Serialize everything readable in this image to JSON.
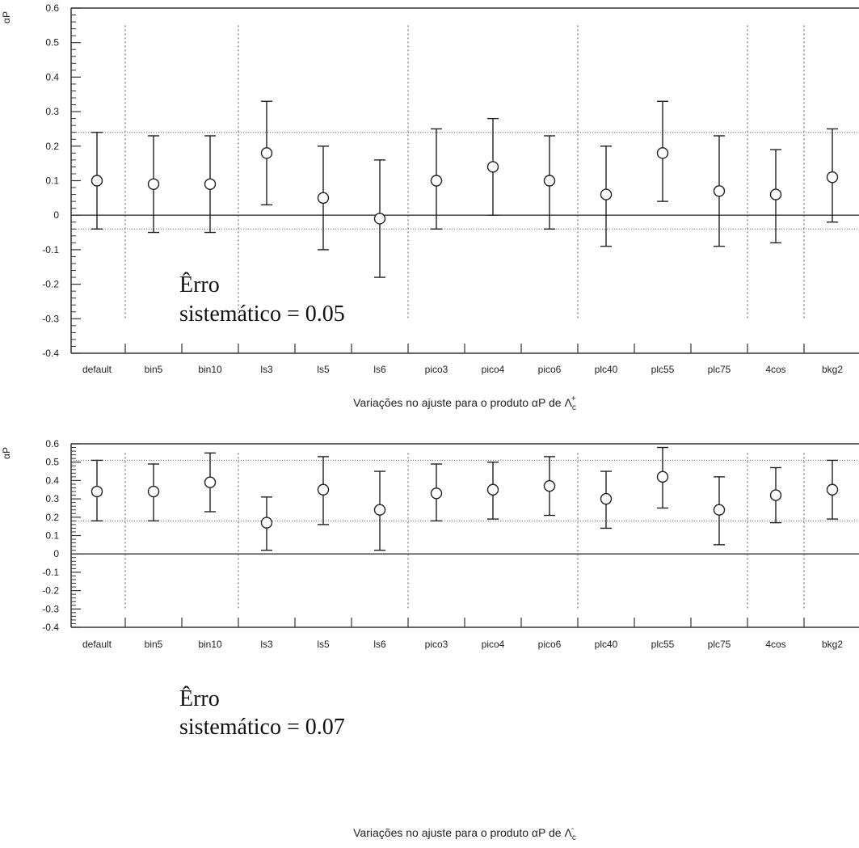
{
  "chart_data": [
    {
      "type": "scatter",
      "ylabel": "αP",
      "xlabel_main": "Variações no ajuste para o produto αP de ",
      "xlabel_symbol": "Λ",
      "xlabel_sub": "c",
      "xlabel_sup": "+",
      "ylim": [
        -0.4,
        0.6
      ],
      "yticks": [
        "0.6",
        "0.5",
        "0.4",
        "0.3",
        "0.2",
        "0.1",
        "0",
        "-0.1",
        "-0.2",
        "-0.3",
        "-0.4"
      ],
      "categories": [
        "default",
        "bin5",
        "bin10",
        "ls3",
        "ls5",
        "ls6",
        "pico3",
        "pico4",
        "pico6",
        "plc40",
        "plc55",
        "plc75",
        "4cos",
        "bkg2"
      ],
      "values": [
        0.1,
        0.09,
        0.09,
        0.18,
        0.05,
        -0.01,
        0.1,
        0.14,
        0.1,
        0.06,
        0.18,
        0.07,
        0.06,
        0.11
      ],
      "err_low": [
        -0.04,
        -0.05,
        -0.05,
        0.03,
        -0.1,
        -0.18,
        -0.04,
        0.0,
        -0.04,
        -0.09,
        0.04,
        -0.09,
        -0.08,
        -0.02
      ],
      "err_high": [
        0.24,
        0.23,
        0.23,
        0.33,
        0.2,
        0.16,
        0.25,
        0.28,
        0.23,
        0.2,
        0.33,
        0.23,
        0.19,
        0.25
      ],
      "reference_lines": [
        0.24,
        0.0,
        -0.04
      ],
      "dashed_dividers_after": [
        "default",
        "bin10",
        "ls6",
        "pico6",
        "plc75",
        "4cos"
      ],
      "annotation_line1": "Êrro",
      "annotation_line2": "sistemático = 0.05"
    },
    {
      "type": "scatter",
      "ylabel": "αP",
      "xlabel_main": "Variações no ajuste para o produto αP de ",
      "xlabel_symbol": "Λ",
      "xlabel_sub": "c",
      "xlabel_sup": "-",
      "ylim": [
        -0.4,
        0.6
      ],
      "yticks": [
        "0.6",
        "0.5",
        "0.4",
        "0.3",
        "0.2",
        "0.1",
        "0",
        "-0.1",
        "-0.2",
        "-0.3",
        "-0.4"
      ],
      "categories": [
        "default",
        "bin5",
        "bin10",
        "ls3",
        "ls5",
        "ls6",
        "pico3",
        "pico4",
        "pico6",
        "plc40",
        "plc55",
        "plc75",
        "4cos",
        "bkg2"
      ],
      "values": [
        0.34,
        0.34,
        0.39,
        0.17,
        0.35,
        0.24,
        0.33,
        0.35,
        0.37,
        0.3,
        0.42,
        0.24,
        0.32,
        0.35
      ],
      "err_low": [
        0.18,
        0.18,
        0.23,
        0.02,
        0.16,
        0.02,
        0.18,
        0.19,
        0.21,
        0.14,
        0.25,
        0.05,
        0.17,
        0.19
      ],
      "err_high": [
        0.51,
        0.49,
        0.55,
        0.31,
        0.53,
        0.45,
        0.49,
        0.5,
        0.53,
        0.45,
        0.58,
        0.42,
        0.47,
        0.51
      ],
      "reference_lines": [
        0.51,
        0.18,
        0.0
      ],
      "dashed_dividers_after": [
        "default",
        "bin10",
        "ls6",
        "pico6",
        "plc75",
        "4cos"
      ],
      "annotation_line1": "Êrro",
      "annotation_line2": "sistemático = 0.07"
    }
  ]
}
